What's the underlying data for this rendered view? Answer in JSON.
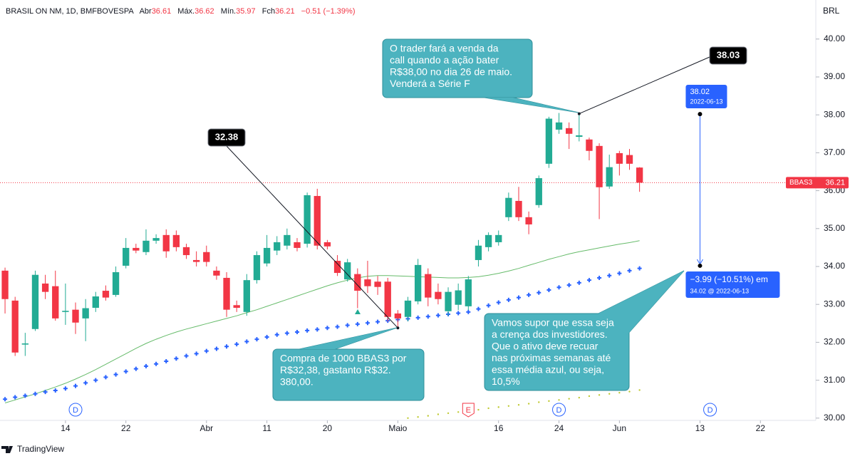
{
  "chart_data": {
    "type": "candlestick",
    "title": "BRASIL ON NM, 1D, BMFBOVESPA",
    "ohlc_labels": [
      "Abr",
      "Máx.",
      "Mín.",
      "Fch"
    ],
    "change_label": "−0.51 (−1.39%)",
    "currency": "BRL",
    "series": [
      {
        "name": "BBAS3",
        "up_color": "#22ab94",
        "down_color": "#f23645",
        "open": [
          33.89,
          33.1,
          31.94,
          32.35,
          33.55,
          33.48,
          32.8,
          32.86,
          32.63,
          32.91,
          33.36,
          33.25,
          34.02,
          34.49,
          34.38,
          34.68,
          34.83,
          34.83,
          34.51,
          34.17,
          34.38,
          33.89,
          33.7,
          32.98,
          32.8,
          33.64,
          34.08,
          34.42,
          34.55,
          34.64,
          34.6,
          35.86,
          34.64,
          34.15,
          33.66,
          33.8,
          33.66,
          33.6,
          33.6,
          32.76,
          32.67,
          33.08,
          33.8,
          33.33,
          32.82,
          32.99,
          32.95,
          34.17,
          34.51,
          34.64,
          35.3,
          35.73,
          35.3,
          35.62,
          36.71,
          37.61,
          37.65,
          37.42,
          37.35,
          37.18,
          36.11,
          36.99,
          36.94,
          36.61
        ],
        "high": [
          33.97,
          33.2,
          32.25,
          33.89,
          33.78,
          33.89,
          33.55,
          33.05,
          33.14,
          33.33,
          33.5,
          34.0,
          34.75,
          34.6,
          34.98,
          34.85,
          34.98,
          34.95,
          34.6,
          34.4,
          34.55,
          34.0,
          33.85,
          33.1,
          33.8,
          34.4,
          34.83,
          34.8,
          35.0,
          34.75,
          35.95,
          36.05,
          34.7,
          34.3,
          34.2,
          33.95,
          34.15,
          33.75,
          33.7,
          32.85,
          33.2,
          34.2,
          33.95,
          33.55,
          33.45,
          33.55,
          33.75,
          34.7,
          34.9,
          34.95,
          35.95,
          36.1,
          35.45,
          36.4,
          37.95,
          38.05,
          37.8,
          38.03,
          37.4,
          37.25,
          36.95,
          37.05,
          37.1,
          36.62
        ],
        "low": [
          32.76,
          31.64,
          31.64,
          32.3,
          33.14,
          32.57,
          32.46,
          32.22,
          32.03,
          32.8,
          33.1,
          33.2,
          33.95,
          34.35,
          34.3,
          34.6,
          34.23,
          34.4,
          34.2,
          34.0,
          34.0,
          33.65,
          32.67,
          32.8,
          32.7,
          33.55,
          34.0,
          34.3,
          34.45,
          34.4,
          34.5,
          34.45,
          34.45,
          33.75,
          33.6,
          32.9,
          33.3,
          33.25,
          32.55,
          32.38,
          32.55,
          33.0,
          32.95,
          33.0,
          32.7,
          32.85,
          32.85,
          34.0,
          34.4,
          34.55,
          35.2,
          35.2,
          34.85,
          35.55,
          36.6,
          37.5,
          37.1,
          37.3,
          36.8,
          35.25,
          36.05,
          36.4,
          36.55,
          35.97
        ],
        "close": [
          33.14,
          31.73,
          31.97,
          33.78,
          33.33,
          32.63,
          32.83,
          32.52,
          32.9,
          33.21,
          33.18,
          33.85,
          34.49,
          34.42,
          34.68,
          34.75,
          34.4,
          34.51,
          34.3,
          34.12,
          34.12,
          33.76,
          32.86,
          32.91,
          33.64,
          34.3,
          34.49,
          34.64,
          34.83,
          34.49,
          35.88,
          34.55,
          34.53,
          33.83,
          34.11,
          33.36,
          33.48,
          33.46,
          32.67,
          32.63,
          33.1,
          34.04,
          33.18,
          33.14,
          33.33,
          33.37,
          33.66,
          34.55,
          34.83,
          34.83,
          35.81,
          35.3,
          35.11,
          36.33,
          37.9,
          37.8,
          37.5,
          37.46,
          37.05,
          36.09,
          36.62,
          36.71,
          36.71,
          36.21
        ]
      }
    ],
    "overlays": [
      {
        "style": "line",
        "color": "#66bb6a",
        "values": [
          30.4,
          30.48,
          30.56,
          30.64,
          30.73,
          30.82,
          30.92,
          31.03,
          31.15,
          31.28,
          31.42,
          31.56,
          31.7,
          31.84,
          31.97,
          32.08,
          32.18,
          32.27,
          32.35,
          32.42,
          32.49,
          32.56,
          32.63,
          32.7,
          32.78,
          32.86,
          32.95,
          33.04,
          33.13,
          33.22,
          33.31,
          33.4,
          33.49,
          33.57,
          33.64,
          33.7,
          33.74,
          33.76,
          33.76,
          33.75,
          33.74,
          33.73,
          33.72,
          33.71,
          33.7,
          33.7,
          33.71,
          33.73,
          33.77,
          33.82,
          33.88,
          33.95,
          34.03,
          34.11,
          34.19,
          34.26,
          34.33,
          34.39,
          34.44,
          34.49,
          34.54,
          34.59,
          34.63,
          34.68
        ]
      },
      {
        "style": "cross",
        "color": "#2962ff",
        "values": [
          30.5,
          30.55,
          30.59,
          30.64,
          30.69,
          30.73,
          30.78,
          30.85,
          30.93,
          31.0,
          31.08,
          31.15,
          31.23,
          31.3,
          31.37,
          31.43,
          31.5,
          31.57,
          31.64,
          31.7,
          31.77,
          31.83,
          31.89,
          31.95,
          32.02,
          32.08,
          32.14,
          32.2,
          32.24,
          32.27,
          32.31,
          32.34,
          32.38,
          32.41,
          32.45,
          32.48,
          32.51,
          32.54,
          32.57,
          32.6,
          32.62,
          32.65,
          32.68,
          32.71,
          32.74,
          32.77,
          32.8,
          32.88,
          32.97,
          33.05,
          33.12,
          33.18,
          33.25,
          33.31,
          33.38,
          33.45,
          33.51,
          33.57,
          33.64,
          33.7,
          33.76,
          33.82,
          33.89,
          33.95
        ]
      },
      {
        "style": "dots",
        "color": "#c0ca33",
        "values": [
          null,
          null,
          null,
          null,
          null,
          null,
          null,
          null,
          null,
          null,
          null,
          null,
          null,
          null,
          null,
          null,
          null,
          null,
          null,
          null,
          null,
          null,
          null,
          null,
          null,
          null,
          null,
          null,
          null,
          null,
          null,
          null,
          null,
          null,
          null,
          null,
          null,
          null,
          null,
          null,
          30.0,
          30.03,
          30.06,
          30.1,
          30.13,
          30.16,
          30.19,
          30.22,
          30.26,
          30.29,
          30.32,
          30.35,
          30.38,
          30.42,
          30.45,
          30.48,
          30.51,
          30.54,
          30.58,
          30.61,
          30.64,
          30.67,
          30.7,
          30.74
        ]
      }
    ],
    "xlim": [
      -0.5,
      80.5
    ],
    "xticks": [
      {
        "value": 6,
        "label": "14"
      },
      {
        "value": 12,
        "label": "22"
      },
      {
        "value": 20,
        "label": "Abr"
      },
      {
        "value": 26,
        "label": "11"
      },
      {
        "value": 32,
        "label": "20"
      },
      {
        "value": 39,
        "label": "Maio"
      },
      {
        "value": 49,
        "label": "16"
      },
      {
        "value": 55,
        "label": "24"
      },
      {
        "value": 61,
        "label": "Jun"
      },
      {
        "value": 69,
        "label": "13"
      },
      {
        "value": 75,
        "label": "22"
      }
    ],
    "ylim": [
      29.94,
      41.03
    ],
    "yticks": [
      {
        "value": 30,
        "label": "30.00"
      },
      {
        "value": 31,
        "label": "31.00"
      },
      {
        "value": 32,
        "label": "32.00"
      },
      {
        "value": 33,
        "label": "33.00"
      },
      {
        "value": 34,
        "label": "34.00"
      },
      {
        "value": 35,
        "label": "35.00"
      },
      {
        "value": 36,
        "label": "36.00"
      },
      {
        "value": 37,
        "label": "37.00"
      },
      {
        "value": 38,
        "label": "38.00"
      },
      {
        "value": 39,
        "label": "39.00"
      },
      {
        "value": 40,
        "label": "40.00"
      }
    ],
    "last_price_line": true,
    "events": [
      {
        "x": 7,
        "label": "D",
        "color": "#2962ff"
      },
      {
        "x": 46,
        "label": "E",
        "color": "#f23645"
      },
      {
        "x": 55,
        "label": "D",
        "color": "#2962ff"
      },
      {
        "x": 70,
        "label": "D",
        "color": "#2962ff"
      }
    ],
    "price_notes": [
      {
        "x": 39,
        "value": 32.38
      },
      {
        "x": 57,
        "value": 38.03
      }
    ],
    "measure": {
      "x": 69,
      "from": 38.02,
      "from_date": "2022-06-13",
      "to": 34.02,
      "to_change": "−3.99 (−10.51%) em",
      "to_detail": "34.02 @ 2022-06-13",
      "color": "#2962ff"
    },
    "callouts": [
      {
        "lines": [
          "O trader fará a venda da",
          "call quando a ação bater",
          "R$38,00 no dia 26 de maio.",
          "Venderá a Série F"
        ]
      },
      {
        "lines": [
          "Compra de 1000 BBAS3 por",
          "R$32,38, gastanto R$32.",
          "380,00."
        ]
      },
      {
        "lines": [
          "Vamos supor que essa seja",
          "a crença dos investidores.",
          "Que o ativo deve recuar",
          "nas próximas semanas até",
          "essa média azul, ou seja,",
          "10,5%"
        ]
      }
    ]
  },
  "footer": {
    "brand": "TradingView"
  }
}
